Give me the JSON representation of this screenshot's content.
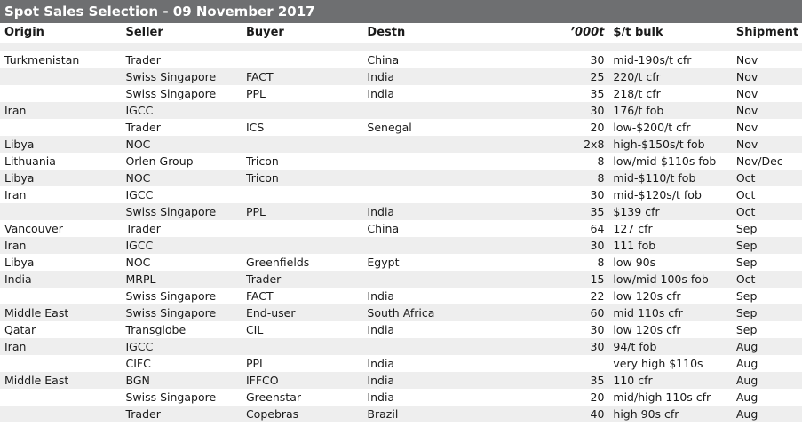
{
  "title": "Spot Sales Selection - 09 November 2017",
  "columns": {
    "origin": "Origin",
    "seller": "Seller",
    "buyer": "Buyer",
    "destn": "Destn",
    "qty": "’000t",
    "price": "$/t bulk",
    "shipment": "Shipment"
  },
  "rows": [
    {
      "origin": "Turkmenistan",
      "seller": "Trader",
      "buyer": "",
      "destn": "China",
      "qty": "30",
      "price": "mid-190s/t cfr",
      "shipment": "Nov"
    },
    {
      "origin": "",
      "seller": "Swiss Singapore",
      "buyer": "FACT",
      "destn": "India",
      "qty": "25",
      "price": "220/t cfr",
      "shipment": "Nov"
    },
    {
      "origin": "",
      "seller": "Swiss Singapore",
      "buyer": "PPL",
      "destn": "India",
      "qty": "35",
      "price": "218/t cfr",
      "shipment": "Nov"
    },
    {
      "origin": "Iran",
      "seller": "IGCC",
      "buyer": "",
      "destn": "",
      "qty": "30",
      "price": "176/t fob",
      "shipment": "Nov"
    },
    {
      "origin": "",
      "seller": "Trader",
      "buyer": "ICS",
      "destn": "Senegal",
      "qty": "20",
      "price": "low-$200/t cfr",
      "shipment": "Nov"
    },
    {
      "origin": "Libya",
      "seller": "NOC",
      "buyer": "",
      "destn": "",
      "qty": "2x8",
      "price": "high-$150s/t fob",
      "shipment": "Nov"
    },
    {
      "origin": "Lithuania",
      "seller": "Orlen Group",
      "buyer": "Tricon",
      "destn": "",
      "qty": "8",
      "price": "low/mid-$110s fob",
      "shipment": "Nov/Dec"
    },
    {
      "origin": "Libya",
      "seller": "NOC",
      "buyer": "Tricon",
      "destn": "",
      "qty": "8",
      "price": "mid-$110/t fob",
      "shipment": "Oct"
    },
    {
      "origin": "Iran",
      "seller": "IGCC",
      "buyer": "",
      "destn": "",
      "qty": "30",
      "price": "mid-$120s/t fob",
      "shipment": "Oct"
    },
    {
      "origin": "",
      "seller": "Swiss Singapore",
      "buyer": "PPL",
      "destn": "India",
      "qty": "35",
      "price": "$139 cfr",
      "shipment": "Oct"
    },
    {
      "origin": "Vancouver",
      "seller": "Trader",
      "buyer": "",
      "destn": "China",
      "qty": "64",
      "price": "127 cfr",
      "shipment": "Sep"
    },
    {
      "origin": "Iran",
      "seller": "IGCC",
      "buyer": "",
      "destn": "",
      "qty": "30",
      "price": "111 fob",
      "shipment": "Sep"
    },
    {
      "origin": "Libya",
      "seller": "NOC",
      "buyer": "Greenfields",
      "destn": "Egypt",
      "qty": "8",
      "price": "low 90s",
      "shipment": "Sep"
    },
    {
      "origin": "India",
      "seller": "MRPL",
      "buyer": "Trader",
      "destn": "",
      "qty": "15",
      "price": "low/mid 100s fob",
      "shipment": "Oct"
    },
    {
      "origin": "",
      "seller": "Swiss Singapore",
      "buyer": "FACT",
      "destn": "India",
      "qty": "22",
      "price": "low 120s cfr",
      "shipment": "Sep"
    },
    {
      "origin": "Middle East",
      "seller": "Swiss Singapore",
      "buyer": "End-user",
      "destn": "South Africa",
      "qty": "60",
      "price": "mid 110s cfr",
      "shipment": "Sep"
    },
    {
      "origin": "Qatar",
      "seller": "Transglobe",
      "buyer": "CIL",
      "destn": "India",
      "qty": "30",
      "price": "low 120s cfr",
      "shipment": "Sep"
    },
    {
      "origin": "Iran",
      "seller": "IGCC",
      "buyer": "",
      "destn": "",
      "qty": "30",
      "price": "94/t fob",
      "shipment": "Aug"
    },
    {
      "origin": "",
      "seller": "CIFC",
      "buyer": "PPL",
      "destn": "India",
      "qty": "",
      "price": "very high $110s",
      "shipment": "Aug"
    },
    {
      "origin": "Middle East",
      "seller": "BGN",
      "buyer": "IFFCO",
      "destn": "India",
      "qty": "35",
      "price": "110 cfr",
      "shipment": "Aug"
    },
    {
      "origin": "",
      "seller": "Swiss Singapore",
      "buyer": "Greenstar",
      "destn": "India",
      "qty": "20",
      "price": "mid/high 110s cfr",
      "shipment": "Aug"
    },
    {
      "origin": "",
      "seller": "Trader",
      "buyer": "Copebras",
      "destn": "Brazil",
      "qty": "40",
      "price": "high 90s cfr",
      "shipment": "Aug"
    }
  ]
}
